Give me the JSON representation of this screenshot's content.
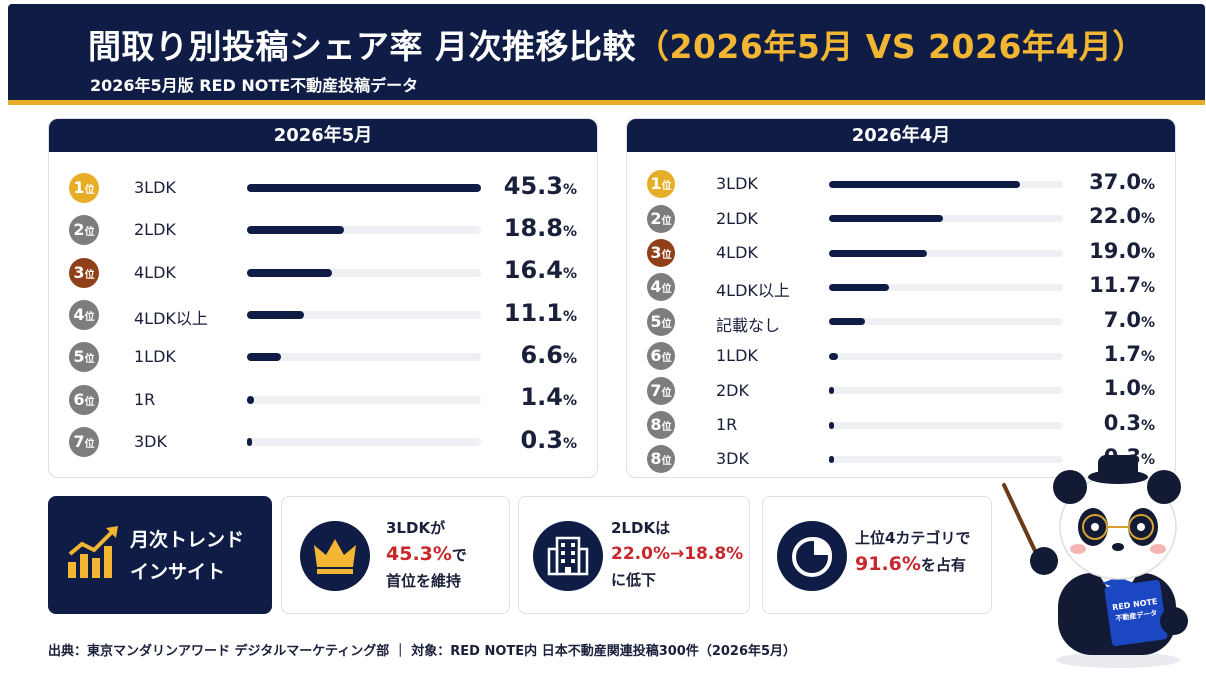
{
  "header": {
    "title_main": "間取り別投稿シェア率 月次推移比較",
    "title_highlight": "（2026年5月 VS 2026年4月）",
    "subtitle": "2026年5月版 RED NOTE不動産投稿データ"
  },
  "colors": {
    "navy": "#0f1c45",
    "gold": "#e8ad27",
    "silver": "#7d7d7d",
    "bronze": "#8f4019",
    "red_accent": "#c8282c"
  },
  "rank_suffix": "位",
  "percent_unit": "%",
  "chart_data": [
    {
      "type": "bar",
      "title": "2026年5月",
      "xlim": [
        0,
        45.3
      ],
      "ranks": [
        1,
        2,
        3,
        4,
        5,
        6,
        7
      ],
      "categories": [
        "3LDK",
        "2LDK",
        "4LDK",
        "4LDK以上",
        "1LDK",
        "1R",
        "3DK"
      ],
      "values": [
        45.3,
        18.8,
        16.4,
        11.1,
        6.6,
        1.4,
        0.3
      ],
      "value_labels": [
        "45.3",
        "18.8",
        "16.4",
        "11.1",
        "6.6",
        "1.4",
        "0.3"
      ]
    },
    {
      "type": "bar",
      "title": "2026年4月",
      "xlim": [
        0,
        45.3
      ],
      "ranks": [
        1,
        2,
        3,
        4,
        5,
        6,
        7,
        8,
        8
      ],
      "categories": [
        "3LDK",
        "2LDK",
        "4LDK",
        "4LDK以上",
        "記載なし",
        "1LDK",
        "2DK",
        "1R",
        "3DK"
      ],
      "values": [
        37.0,
        22.0,
        19.0,
        11.7,
        7.0,
        1.7,
        1.0,
        0.3,
        0.3
      ],
      "value_labels": [
        "37.0",
        "22.0",
        "19.0",
        "11.7",
        "7.0",
        "1.7",
        "1.0",
        "0.3",
        "0.3"
      ]
    }
  ],
  "insights": {
    "title_line1": "月次トレンド",
    "title_line2": "インサイト",
    "cards": [
      {
        "icon": "crown-icon",
        "line1": "3LDKが",
        "highlight": "45.3%",
        "line2_after": "で",
        "line3": "首位を維持"
      },
      {
        "icon": "building-icon",
        "line1": "2LDKは",
        "highlight": "22.0%→18.8%",
        "line2_after": "",
        "line3": "に低下"
      },
      {
        "icon": "pie-icon",
        "line1": "上位4カテゴリで",
        "highlight": "91.6%",
        "line2_after": "を占有",
        "line3": ""
      }
    ]
  },
  "mascot": {
    "book_line1": "RED NOTE",
    "book_line2": "不動産データ"
  },
  "footer": {
    "text": "出典：東京マンダリンアワード デジタルマーケティング部 ｜ 対象：RED NOTE内 日本不動産関連投稿300件（2026年5月）"
  }
}
